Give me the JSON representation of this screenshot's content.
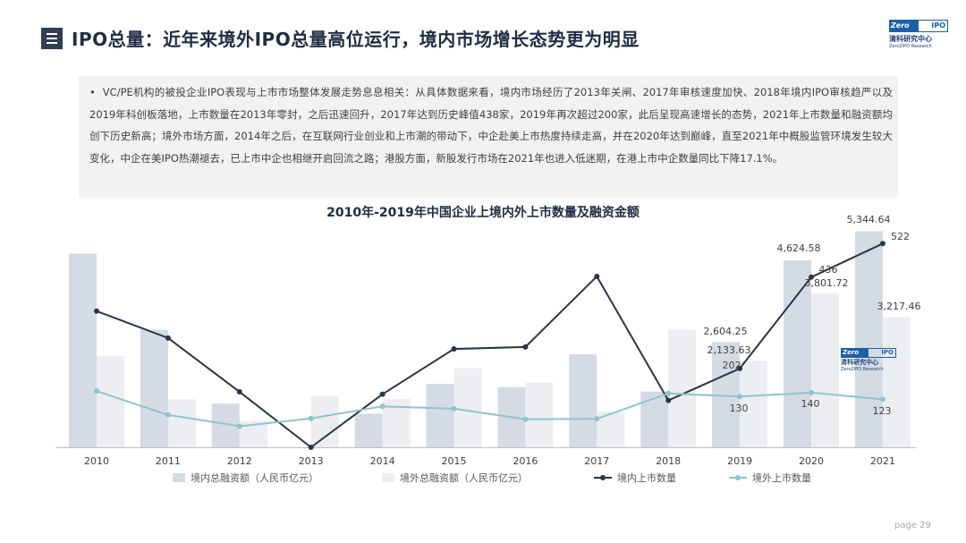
{
  "header": {
    "title": "IPO总量：近年来境外IPO总量高位运行，境内市场增长态势更为明显",
    "logo": {
      "mark_left": "Zero",
      "mark_right": "IPO",
      "name_cn": "清科研究中心",
      "name_en": "Zero2IPO Research"
    }
  },
  "summary": {
    "text": "VC/PE机构的被投企业IPO表现与上市市场整体发展走势息息相关：从具体数据来看，境内市场经历了2013年关闸、2017年审核速度加快、2018年境内IPO审核趋严以及2019年科创板落地，上市数量在2013年零封，之后迅速回升，2017年达到历史峰值438家，2019年再次超过200家，此后呈现高速增长的态势，2021年上市数量和融资额均创下历史新高；境外市场方面，2014年之后，在互联网行业创业和上市潮的带动下，中企赴美上市热度持续走高，并在2020年达到巅峰，直至2021年中概股监管环境发生较大变化，中企在美IPO热潮褪去，已上市中企也相继开启回流之路；港股方面，新股发行市场在2021年也进入低迷期，在港上市中企数量同比下降17.1%。"
  },
  "footer": {
    "page_label": "page 29"
  },
  "chart_data": {
    "type": "bar",
    "title": "2010年-2019年中国企业上境内外上市数量及融资金额",
    "categories": [
      "2010",
      "2011",
      "2012",
      "2013",
      "2014",
      "2015",
      "2016",
      "2017",
      "2018",
      "2019",
      "2020",
      "2021"
    ],
    "series": [
      {
        "name": "境内总融资额（人民币亿元）",
        "kind": "bar",
        "axis": "left",
        "color": "#d5dbe4",
        "values": [
          4790,
          2910,
          1080,
          0,
          830,
          1570,
          1490,
          2300,
          1380,
          2604.25,
          4624.58,
          5344.64
        ]
      },
      {
        "name": "境外总融资额（人民币亿元）",
        "kind": "bar",
        "axis": "left",
        "color": "#eceef1",
        "values": [
          2260,
          1190,
          650,
          1260,
          1200,
          1960,
          1600,
          880,
          2910,
          2133.63,
          3801.72,
          3217.46
        ]
      },
      {
        "name": "境内上市数量",
        "kind": "line",
        "axis": "right",
        "color": "#2a3548",
        "values": [
          349,
          280,
          142,
          0,
          136,
          252,
          257,
          438,
          120,
          202,
          436,
          522
        ]
      },
      {
        "name": "境外上市数量",
        "kind": "line",
        "axis": "right",
        "color": "#8fc3cf",
        "values": [
          144,
          83,
          54,
          74,
          105,
          99,
          72,
          73,
          138,
          130,
          140,
          123
        ]
      }
    ],
    "data_labels": [
      {
        "text": "5,344.64"
      },
      {
        "text": "522"
      },
      {
        "text": "4,624.58"
      },
      {
        "text": "436"
      },
      {
        "text": "3,801.72"
      },
      {
        "text": "3,217.46"
      },
      {
        "text": "2,604.25"
      },
      {
        "text": "2,133.63"
      },
      {
        "text": "202"
      },
      {
        "text": "130"
      },
      {
        "text": "140"
      },
      {
        "text": "123"
      }
    ],
    "left_axis_range": [
      0,
      5600
    ],
    "right_axis_range": [
      0,
      580
    ],
    "grid": false,
    "legend_position": "bottom"
  }
}
